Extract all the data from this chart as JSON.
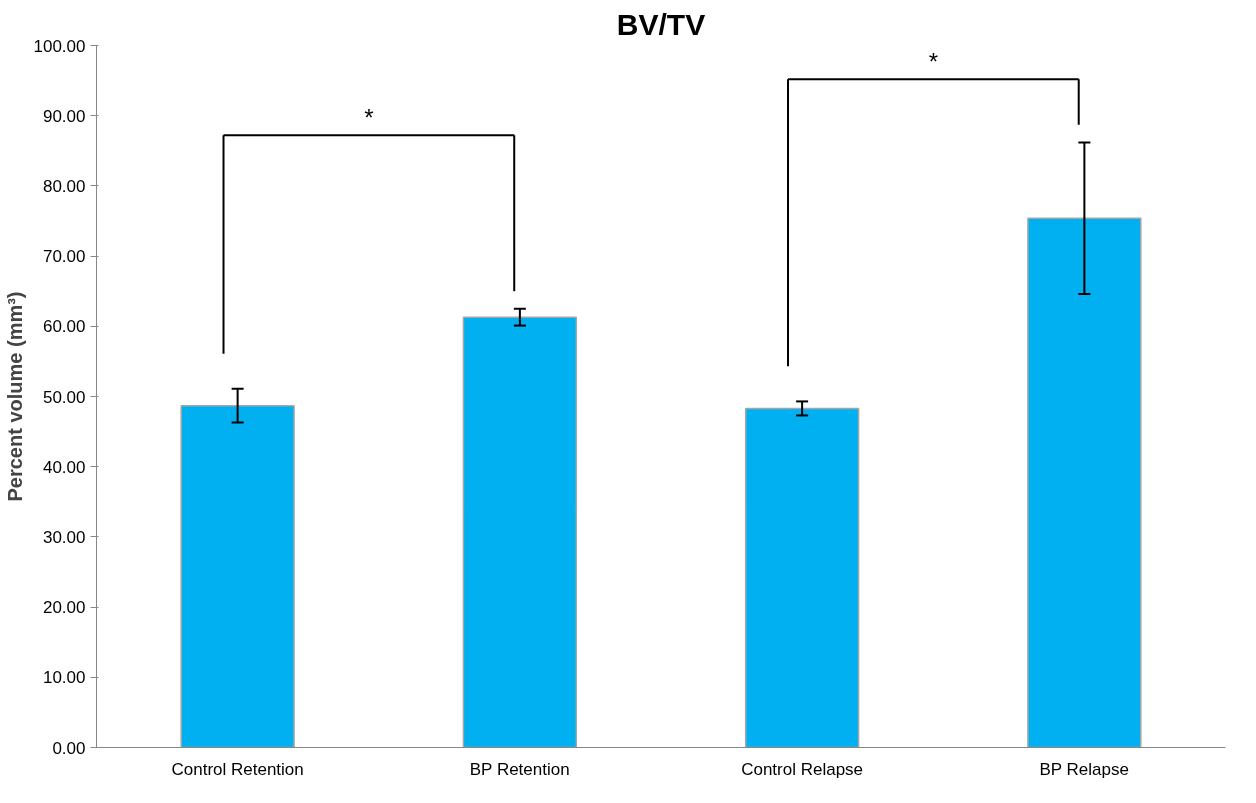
{
  "chart_data": {
    "type": "bar",
    "title": "BV/TV",
    "ylabel": "Percent volume (mm³)",
    "categories": [
      "Control Retention",
      "BP Retention",
      "Control Relapse",
      "BP Relapse"
    ],
    "values": [
      48.7,
      61.3,
      48.3,
      75.4
    ],
    "errors": [
      2.4,
      1.2,
      1.0,
      10.8
    ],
    "color": "#00b0f0",
    "ylim": [
      0,
      100
    ],
    "yticks": [
      {
        "value": 0,
        "label": "0.00"
      },
      {
        "value": 10,
        "label": "10.00"
      },
      {
        "value": 20,
        "label": "20.00"
      },
      {
        "value": 30,
        "label": "30.00"
      },
      {
        "value": 40,
        "label": "40.00"
      },
      {
        "value": 50,
        "label": "50.00"
      },
      {
        "value": 60,
        "label": "60.00"
      },
      {
        "value": 70,
        "label": "70.00"
      },
      {
        "value": 80,
        "label": "80.00"
      },
      {
        "value": 90,
        "label": "90.00"
      },
      {
        "value": 100,
        "label": "100.00"
      }
    ],
    "annotations": [
      "*",
      "*"
    ],
    "grid": false
  }
}
